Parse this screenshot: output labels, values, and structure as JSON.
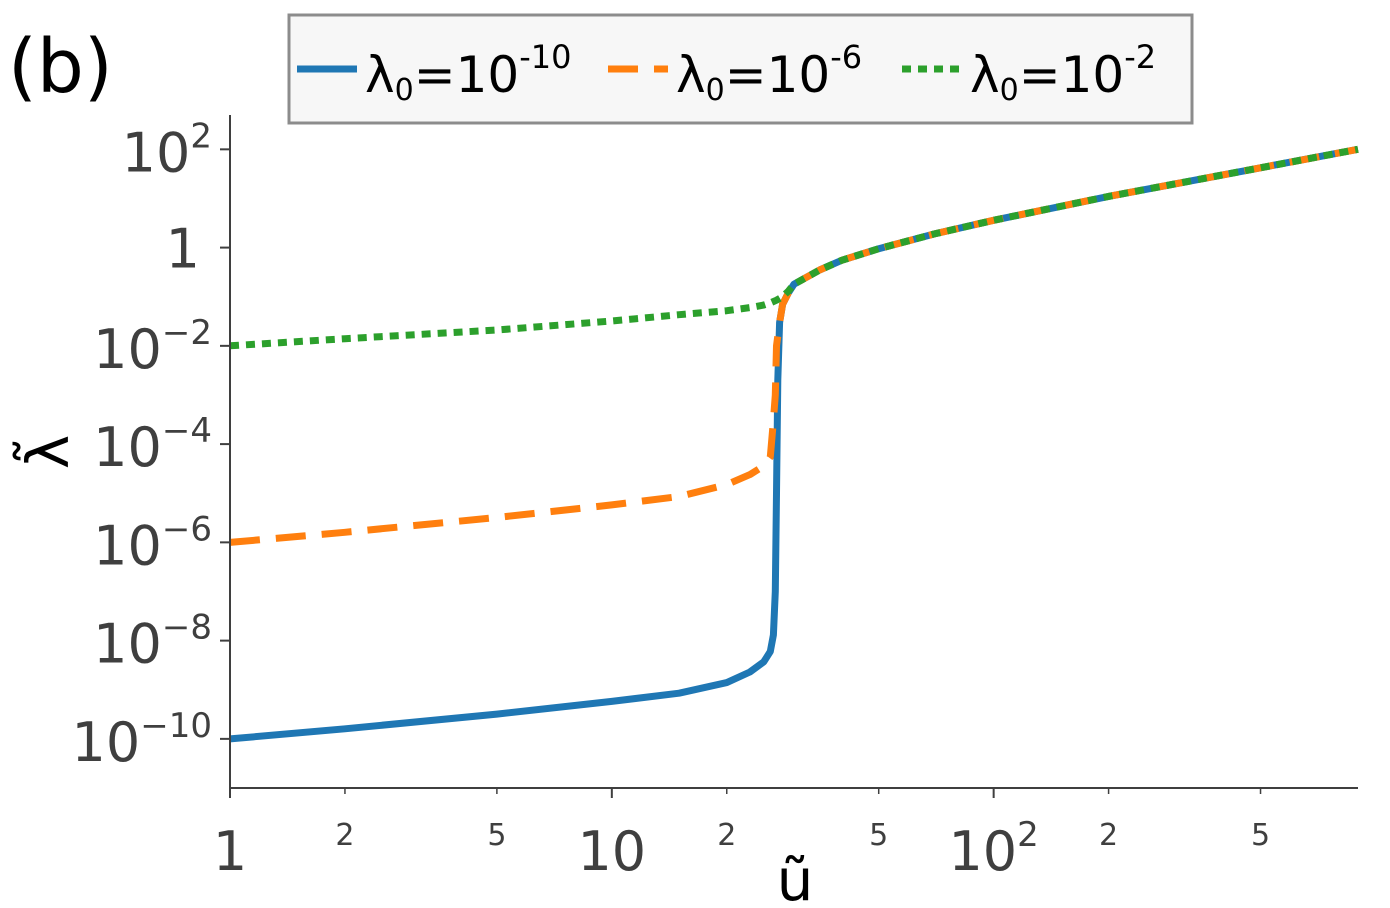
{
  "panel_label": "(b)",
  "colors": {
    "axis": "#3f3f3f",
    "legend_border": "#8c8c8c",
    "legend_bg": "#f7f7f7"
  },
  "chart_data": {
    "type": "line",
    "xlabel": "ũ",
    "ylabel": "λ̃",
    "xscale": "log",
    "yscale": "log",
    "xlim": [
      1,
      900
    ],
    "ylim": [
      1e-11,
      500
    ],
    "grid": false,
    "legend_position": "top-center",
    "x_ticks": [
      {
        "value": 1,
        "base": "1",
        "exp": ""
      },
      {
        "value": 10,
        "base": "10",
        "exp": ""
      },
      {
        "value": 100,
        "base": "10",
        "exp": "2"
      }
    ],
    "x_minor_ticks": [
      {
        "value": 2,
        "label": "2"
      },
      {
        "value": 5,
        "label": "5"
      },
      {
        "value": 20,
        "label": "2"
      },
      {
        "value": 50,
        "label": "5"
      },
      {
        "value": 200,
        "label": "2"
      },
      {
        "value": 500,
        "label": "5"
      }
    ],
    "y_ticks": [
      {
        "value": 1e-10,
        "base": "10",
        "exp": "−10"
      },
      {
        "value": 1e-08,
        "base": "10",
        "exp": "−8"
      },
      {
        "value": 1e-06,
        "base": "10",
        "exp": "−6"
      },
      {
        "value": 0.0001,
        "base": "10",
        "exp": "−4"
      },
      {
        "value": 0.01,
        "base": "10",
        "exp": "−2"
      },
      {
        "value": 1,
        "base": "1",
        "exp": ""
      },
      {
        "value": 100,
        "base": "10",
        "exp": "2"
      }
    ],
    "series": [
      {
        "name": "λ0=10-10",
        "name_parts": {
          "sym": "λ",
          "sub": "0",
          "mid": "=10",
          "sup": "-10"
        },
        "color": "#1f77b4",
        "style": "solid",
        "x": [
          1,
          2,
          5,
          10,
          15,
          20,
          23,
          25,
          26,
          26.5,
          26.8,
          27,
          27.2,
          27.5,
          28,
          29,
          30,
          35,
          40,
          50,
          70,
          100,
          200,
          500,
          900
        ],
        "y": [
          1e-10,
          1.6e-10,
          3.2e-10,
          5.8e-10,
          8.5e-10,
          1.4e-09,
          2.3e-09,
          3.7e-09,
          6e-09,
          1.3e-08,
          1e-07,
          1e-05,
          0.002,
          0.03,
          0.07,
          0.12,
          0.18,
          0.35,
          0.55,
          0.95,
          1.9,
          3.6,
          11,
          42,
          100
        ]
      },
      {
        "name": "λ0=10-6",
        "name_parts": {
          "sym": "λ",
          "sub": "0",
          "mid": "=10",
          "sup": "-6"
        },
        "color": "#ff7f0e",
        "style": "dashed",
        "x": [
          1,
          2,
          5,
          10,
          15,
          20,
          23,
          25,
          26,
          26.5,
          26.8,
          27,
          27.5,
          28,
          29,
          30,
          35,
          40,
          50,
          70,
          100,
          200,
          500,
          900
        ],
        "y": [
          1e-06,
          1.6e-06,
          3.2e-06,
          5.8e-06,
          8.6e-06,
          1.5e-05,
          2.4e-05,
          3.6e-05,
          5.5e-05,
          0.0003,
          0.001,
          0.01,
          0.03,
          0.07,
          0.12,
          0.18,
          0.35,
          0.55,
          0.95,
          1.9,
          3.6,
          11,
          42,
          100
        ]
      },
      {
        "name": "λ0=10-2",
        "name_parts": {
          "sym": "λ",
          "sub": "0",
          "mid": "=10",
          "sup": "-2"
        },
        "color": "#2ca02c",
        "style": "dotted",
        "x": [
          1,
          2,
          5,
          10,
          15,
          20,
          23,
          25,
          26,
          27,
          28,
          29,
          30,
          35,
          40,
          50,
          70,
          100,
          200,
          500,
          900
        ],
        "y": [
          0.01,
          0.014,
          0.021,
          0.032,
          0.043,
          0.052,
          0.06,
          0.068,
          0.075,
          0.085,
          0.1,
          0.13,
          0.18,
          0.35,
          0.55,
          0.95,
          1.9,
          3.6,
          11,
          42,
          100
        ]
      }
    ]
  }
}
